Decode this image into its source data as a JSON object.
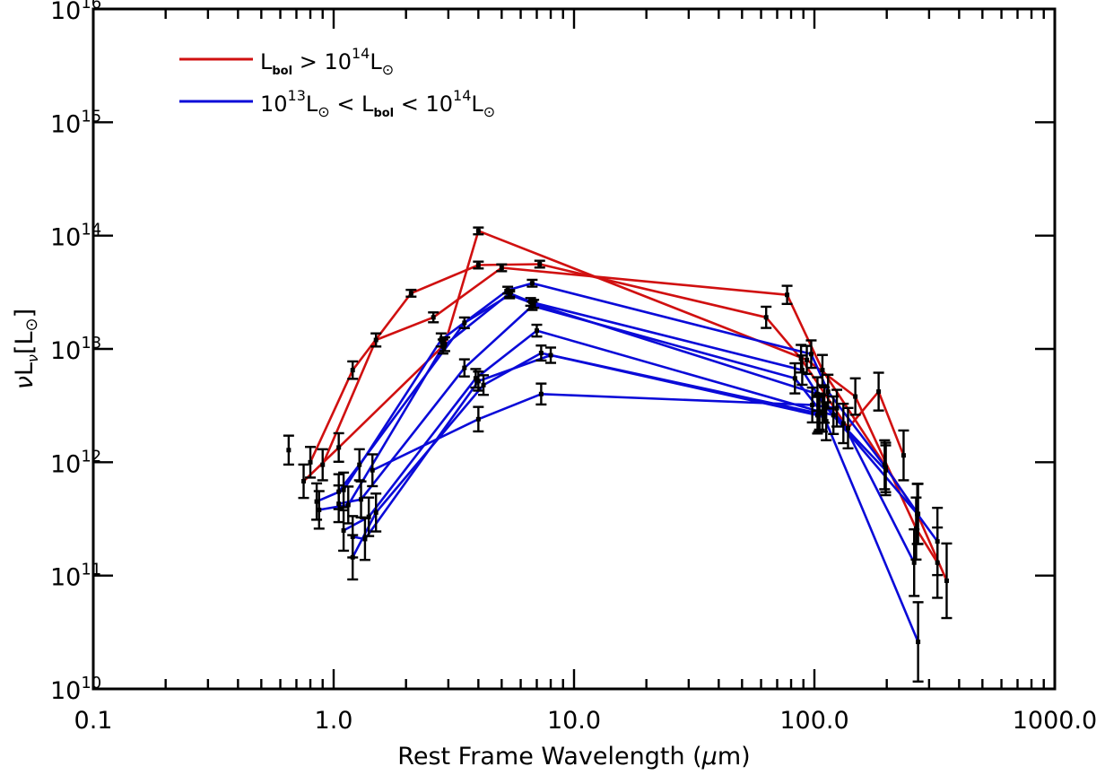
{
  "chart_data": {
    "type": "line",
    "scale": {
      "x": "log",
      "y": "log"
    },
    "xlabel_parts": {
      "text": "Rest Frame Wavelength (",
      "mu": "μ",
      "unit": "m)"
    },
    "ylabel_parts": {
      "nu": "ν",
      "L": "L",
      "nu_sub": "ν",
      "unit": "[L",
      "unit_close": "]"
    },
    "xlim": [
      0.1,
      1000
    ],
    "ylim": [
      10000000000.0,
      1e+16
    ],
    "x_ticks": [
      {
        "value": 0.1,
        "label": "0.1"
      },
      {
        "value": 1,
        "label": "1.0"
      },
      {
        "value": 10,
        "label": "10.0"
      },
      {
        "value": 100,
        "label": "100.0"
      },
      {
        "value": 1000,
        "label": "1000.0"
      }
    ],
    "y_ticks": [
      {
        "value": 10000000000.0,
        "base": "10",
        "exp": "10"
      },
      {
        "value": 100000000000.0,
        "base": "10",
        "exp": "11"
      },
      {
        "value": 1000000000000.0,
        "base": "10",
        "exp": "12"
      },
      {
        "value": 10000000000000.0,
        "base": "10",
        "exp": "13"
      },
      {
        "value": 100000000000000.0,
        "base": "10",
        "exp": "14"
      },
      {
        "value": 1000000000000000.0,
        "base": "10",
        "exp": "15"
      },
      {
        "value": 1e+16,
        "base": "10",
        "exp": "16"
      }
    ],
    "legend": {
      "position": "top-left",
      "entries": [
        {
          "color": "#d01010",
          "parts": {
            "L": "L",
            "sub": "bol",
            "rel": " > 10",
            "exp": "14",
            "L2": "L",
            "sun": "⊙"
          }
        },
        {
          "color": "#0a0ad8",
          "parts": {
            "pre": "10",
            "pre_exp": "13",
            "L": "L",
            "sun": "⊙",
            "mid": " < L",
            "sub": "bol",
            "rel": " < 10",
            "exp": "14",
            "L2": "L",
            "sun2": "⊙"
          }
        }
      ]
    },
    "series": [
      {
        "name": "Lbol > 1e14 (1)",
        "group": "red",
        "color": "#d01010",
        "x": [
          0.8,
          1.2,
          2.1,
          4.0,
          7.2,
          63,
          88,
          138,
          185,
          235
        ],
        "y": [
          1000000000000.0,
          6500000000000.0,
          31000000000000.0,
          55000000000000.0,
          56000000000000.0,
          19000000000000.0,
          8200000000000.0,
          2000000000000.0,
          4200000000000.0,
          1150000000000.0
        ]
      },
      {
        "name": "Lbol > 1e14 (2)",
        "group": "red",
        "color": "#d01010",
        "x": [
          0.9,
          1.5,
          2.6,
          5.0,
          77,
          108,
          196,
          268,
          355
        ],
        "y": [
          950000000000.0,
          12000000000000.0,
          19000000000000.0,
          52000000000000.0,
          30000000000000.0,
          6500000000000.0,
          950000000000.0,
          350000000000.0,
          90000000000.0
        ]
      },
      {
        "name": "Lbol > 1e14 (3)",
        "group": "red",
        "color": "#d01010",
        "x": [
          0.75,
          1.05,
          2.9,
          4.0,
          93,
          148,
          265,
          325
        ],
        "y": [
          680000000000.0,
          1350000000000.0,
          11000000000000.0,
          110000000000000.0,
          8000000000000.0,
          3800000000000.0,
          260000000000.0,
          130000000000.0
        ]
      },
      {
        "name": "1e13 < Lbol < 1e14 (1)",
        "group": "blue",
        "color": "#0a0ad8",
        "x": [
          0.85,
          1.1,
          2.8,
          5.3,
          6.7,
          97,
          114,
          198,
          270
        ],
        "y": [
          450000000000.0,
          570000000000.0,
          12000000000000.0,
          33000000000000.0,
          38000000000000.0,
          9000000000000.0,
          4200000000000.0,
          900000000000.0,
          350000000000.0
        ]
      },
      {
        "name": "1e13 < Lbol < 1e14 (2)",
        "group": "blue",
        "color": "#0a0ad8",
        "x": [
          0.87,
          1.15,
          2.85,
          5.4,
          6.6,
          89,
          110,
          268,
          325
        ],
        "y": [
          380000000000.0,
          420000000000.0,
          10500000000000.0,
          31000000000000.0,
          26000000000000.0,
          6500000000000.0,
          3200000000000.0,
          350000000000.0,
          200000000000.0
        ]
      },
      {
        "name": "1e13 < Lbol < 1e14 (3)",
        "group": "blue",
        "color": "#0a0ad8",
        "x": [
          1.05,
          1.28,
          3.5,
          5.4,
          6.8,
          103,
          132,
          260
        ],
        "y": [
          550000000000.0,
          950000000000.0,
          17000000000000.0,
          30000000000000.0,
          25000000000000.0,
          4000000000000.0,
          2200000000000.0,
          130000000000.0
        ]
      },
      {
        "name": "1e13 < Lbol < 1e14 (4)",
        "group": "blue",
        "color": "#0a0ad8",
        "x": [
          1.05,
          1.3,
          3.5,
          6.7,
          83,
          108,
          270
        ],
        "y": [
          430000000000.0,
          470000000000.0,
          6800000000000.0,
          24000000000000.0,
          5500000000000.0,
          2700000000000.0,
          26000000000.0
        ]
      },
      {
        "name": "1e13 < Lbol < 1e14 (5)",
        "group": "blue",
        "color": "#0a0ad8",
        "x": [
          1.1,
          1.4,
          3.9,
          7.0,
          105,
          120,
          198
        ],
        "y": [
          250000000000.0,
          330000000000.0,
          5500000000000.0,
          14500000000000.0,
          2800000000000.0,
          2600000000000.0,
          850000000000.0
        ]
      },
      {
        "name": "1e13 < Lbol < 1e14 (6)",
        "group": "blue",
        "color": "#0a0ad8",
        "x": [
          1.2,
          1.5,
          4.2,
          7.3,
          104,
          112
        ],
        "y": [
          145000000000.0,
          360000000000.0,
          4800000000000.0,
          9200000000000.0,
          2700000000000.0,
          2300000000000.0
        ]
      },
      {
        "name": "1e13 < Lbol < 1e14 (7)",
        "group": "blue",
        "color": "#0a0ad8",
        "x": [
          1.2,
          1.35,
          4.0,
          8.0,
          103
        ],
        "y": [
          220000000000.0,
          210000000000.0,
          5200000000000.0,
          8800000000000.0,
          2600000000000.0
        ]
      },
      {
        "name": "1e13 < Lbol < 1e14 (8)",
        "group": "blue",
        "color": "#0a0ad8",
        "x": [
          1.45,
          4.0,
          7.3,
          98,
          124
        ],
        "y": [
          850000000000.0,
          2400000000000.0,
          4000000000000.0,
          3200000000000.0,
          3000000000000.0
        ]
      }
    ],
    "unconnected_points": [
      {
        "x": 0.65,
        "y": 1280000000000.0
      }
    ]
  }
}
